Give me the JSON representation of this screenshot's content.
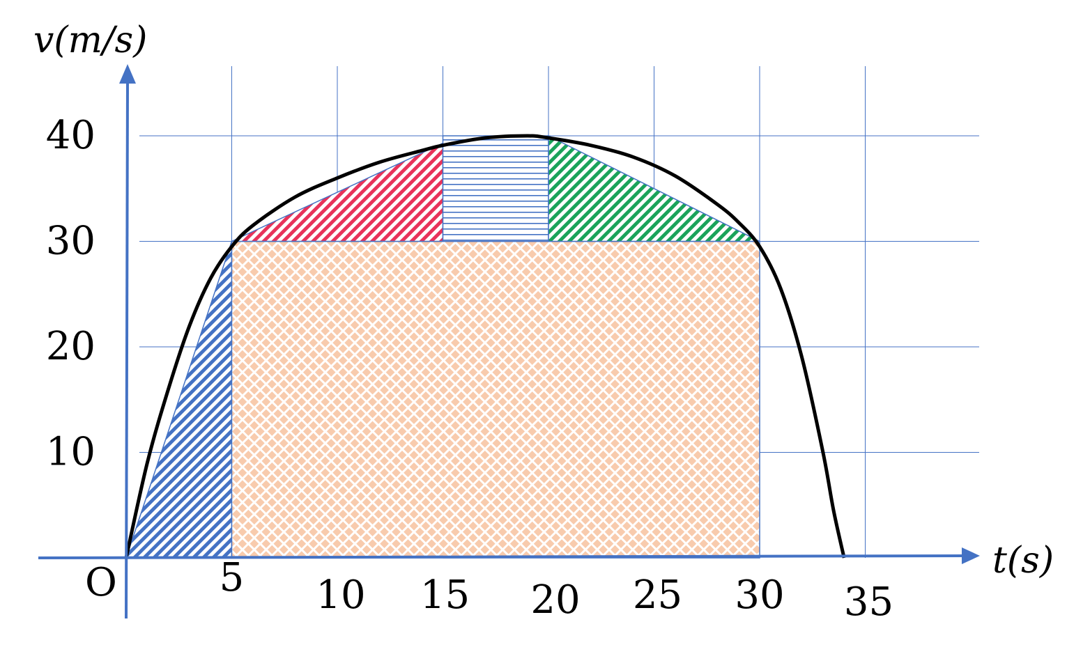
{
  "chart_data": {
    "type": "line",
    "title": "",
    "xlabel": "t(s)",
    "ylabel": "v(m/s)",
    "origin_label": "O",
    "x_ticks": [
      5,
      10,
      15,
      20,
      25,
      30,
      35
    ],
    "y_ticks": [
      10,
      20,
      30,
      40
    ],
    "xlim": [
      0,
      40
    ],
    "ylim": [
      0,
      44
    ],
    "grid": true,
    "curve": {
      "name": "v(t)",
      "color": "#000000",
      "points": [
        [
          0,
          0
        ],
        [
          1,
          9
        ],
        [
          2,
          16
        ],
        [
          3,
          22
        ],
        [
          4,
          26.5
        ],
        [
          5,
          29.5
        ],
        [
          6,
          31.5
        ],
        [
          8,
          34.2
        ],
        [
          10,
          36
        ],
        [
          12,
          37.5
        ],
        [
          14,
          38.6
        ],
        [
          15,
          39.1
        ],
        [
          17,
          39.8
        ],
        [
          19,
          40
        ],
        [
          20,
          39.8
        ],
        [
          22,
          39.1
        ],
        [
          24,
          38
        ],
        [
          26,
          36.2
        ],
        [
          28,
          33.5
        ],
        [
          29,
          31.8
        ],
        [
          30,
          29.5
        ],
        [
          31,
          25.5
        ],
        [
          32,
          19
        ],
        [
          33,
          10
        ],
        [
          33.5,
          4.5
        ],
        [
          34,
          0
        ]
      ]
    },
    "regions": [
      {
        "name": "blue-triangle",
        "shape": "triangle",
        "vertices": [
          [
            0,
            0
          ],
          [
            5,
            30
          ],
          [
            5,
            0
          ]
        ],
        "color": "#4472c4",
        "pattern": "diagonal-stripes"
      },
      {
        "name": "orange-rectangle",
        "shape": "rectangle",
        "vertices": [
          [
            5,
            0
          ],
          [
            30,
            0
          ],
          [
            30,
            30
          ],
          [
            5,
            30
          ]
        ],
        "color": "#f8cbad",
        "pattern": "diamond-grid"
      },
      {
        "name": "red-triangle",
        "shape": "triangle",
        "vertices": [
          [
            5,
            30
          ],
          [
            15,
            39.3
          ],
          [
            15,
            30
          ]
        ],
        "color": "#e8325a",
        "pattern": "diagonal-stripes"
      },
      {
        "name": "striped-rectangle",
        "shape": "rectangle",
        "vertices": [
          [
            15,
            30
          ],
          [
            20,
            30
          ],
          [
            20,
            40
          ],
          [
            15,
            40
          ]
        ],
        "color": "#4472c4",
        "pattern": "horizontal-lines"
      },
      {
        "name": "green-triangle",
        "shape": "triangle",
        "vertices": [
          [
            20,
            40
          ],
          [
            30,
            30
          ],
          [
            20,
            30
          ]
        ],
        "color": "#1aa35a",
        "pattern": "diagonal-stripes"
      }
    ],
    "colors": {
      "axis": "#4472c4",
      "grid": "#4472c4"
    }
  }
}
